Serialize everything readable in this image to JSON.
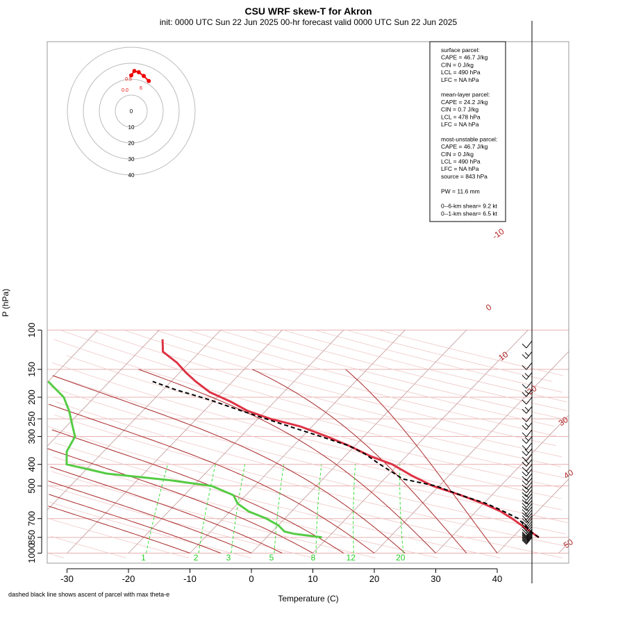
{
  "title": "CSU WRF skew-T for Akron",
  "subtitle": "init: 0000 UTC Sun 22 Jun 2025     00-hr forecast valid 0000 UTC Sun 22 Jun 2025",
  "xlabel": "Temperature (C)",
  "ylabel": "P (hPa)",
  "footnote": "dashed black line shows ascent of parcel with max theta-e",
  "pressure_ticks": [
    "100",
    "150",
    "200",
    "250",
    "300",
    "400",
    "500",
    "700",
    "850",
    "1000"
  ],
  "temp_ticks": [
    "-30",
    "-20",
    "-10",
    "0",
    "10",
    "20",
    "30",
    "40"
  ],
  "stats_lines": [
    "surface parcel:",
    "CAPE = 46.7 J/kg",
    "CIN = 0 J/kg",
    "LCL = 490 hPa",
    "LFC = NA hPa",
    "",
    "mean-layer parcel:",
    "CAPE = 24.2 J/kg",
    "CIN = 0.7 J/kg",
    "LCL = 478 hPa",
    "LFC = NA hPa",
    "",
    "most-unstable parcel:",
    "CAPE = 46.7 J/kg",
    "CIN = 0 J/kg",
    "LCL = 490 hPa",
    "LFC = NA hPa",
    "source = 843 hPa",
    "",
    "PW =  11.6 mm",
    "",
    "0--6-km shear= 9.2 kt",
    "0--1-km shear= 6.5 kt"
  ],
  "hodograph_ring_labels": [
    "0",
    "10",
    "20",
    "30",
    "40"
  ],
  "hodograph_point_labels": [
    "0.5",
    "6",
    "0.0"
  ],
  "chart_data": {
    "type": "line",
    "title": "CSU WRF skew-T for Akron",
    "xlabel": "Temperature (C)",
    "ylabel": "P (hPa)",
    "xlim": [
      -33,
      52
    ],
    "ylim": [
      1000,
      100
    ],
    "y_scale": "log",
    "colors": {
      "temperature": "#dd3344",
      "dewpoint": "#55cc44",
      "parcel": "#000000",
      "isotherm": "#8b1a1a",
      "mixing_ratio": "#22dd22",
      "hodograph": "#ee0000"
    },
    "series": [
      {
        "points": [
          [
            44.3,
            850
          ],
          [
            42,
            800
          ],
          [
            37,
            700
          ],
          [
            34,
            650
          ],
          [
            30,
            600
          ],
          [
            25,
            550
          ],
          [
            19,
            500
          ],
          [
            14,
            450
          ],
          [
            9,
            400
          ],
          [
            4.5,
            370
          ],
          [
            -1,
            330
          ],
          [
            -6,
            300
          ],
          [
            -12,
            270
          ],
          [
            -18,
            250
          ],
          [
            -23,
            230
          ],
          [
            -27,
            210
          ],
          [
            -32,
            190
          ],
          [
            -36,
            170
          ],
          [
            -39,
            155
          ],
          [
            -42,
            140
          ],
          [
            -46,
            125
          ],
          [
            -48,
            110
          ]
        ]
      },
      {
        "points": [
          [
            9,
            850
          ],
          [
            4,
            820
          ],
          [
            2,
            800
          ],
          [
            0,
            750
          ],
          [
            -3,
            700
          ],
          [
            -7,
            650
          ],
          [
            -10,
            600
          ],
          [
            -12,
            550
          ],
          [
            -17,
            500
          ],
          [
            -25,
            470
          ],
          [
            -36,
            440
          ],
          [
            -44,
            400
          ],
          [
            -46,
            350
          ],
          [
            -47,
            300
          ],
          [
            -49,
            270
          ],
          [
            -52,
            230
          ],
          [
            -55,
            200
          ],
          [
            -60,
            170
          ],
          [
            -65,
            150
          ],
          [
            -72,
            120
          ],
          [
            -77,
            105
          ]
        ]
      },
      {
        "points": [
          [
            44.3,
            850
          ],
          [
            42,
            800
          ],
          [
            38,
            700
          ],
          [
            34.5,
            650
          ],
          [
            30.5,
            600
          ],
          [
            25,
            550
          ],
          [
            19.5,
            500
          ],
          [
            13,
            465
          ],
          [
            7,
            400
          ],
          [
            3,
            360
          ],
          [
            -1,
            330
          ],
          [
            -7,
            300
          ],
          [
            -15,
            265
          ],
          [
            -24,
            230
          ],
          [
            -31,
            205
          ],
          [
            -38,
            185
          ],
          [
            -43,
            170
          ]
        ]
      }
    ],
    "isotherms": [
      -100,
      -90,
      -80,
      -70,
      -60,
      -50,
      -40,
      -30,
      -20,
      -10,
      0,
      10,
      20,
      30,
      40,
      50
    ],
    "isotherm_labels": [
      "-10",
      "0",
      "10",
      "20",
      "30",
      "40",
      "50"
    ],
    "mixing_ratios": [
      1,
      2,
      3,
      5,
      8,
      12,
      20
    ],
    "mixing_ratio_labels": [
      "1",
      "2",
      "3",
      "5",
      "8",
      "12",
      "20"
    ],
    "dry_adiabats_theta": [
      240,
      250,
      260,
      270,
      280,
      290,
      300,
      310,
      320,
      330,
      340,
      350,
      360,
      370,
      380,
      390,
      400,
      410,
      420,
      430,
      440,
      450,
      460,
      470,
      480,
      490,
      500
    ],
    "moist_adiabats_start_T": [
      -10,
      -5,
      0,
      5,
      10,
      15,
      20,
      25,
      30,
      35,
      40
    ],
    "wind_barb_pressures": [
      850,
      840,
      830,
      820,
      810,
      800,
      790,
      780,
      760,
      740,
      720,
      700,
      680,
      660,
      640,
      620,
      600,
      580,
      560,
      540,
      520,
      500,
      480,
      460,
      440,
      420,
      400,
      380,
      360,
      340,
      320,
      300,
      280,
      260,
      240,
      220,
      200,
      185,
      170,
      155,
      140,
      125,
      112
    ],
    "hodograph": {
      "u": [
        0,
        0.5,
        1.2,
        2,
        2.8
      ],
      "v": [
        1.5,
        2.2,
        2,
        1.4,
        0.6
      ]
    }
  }
}
